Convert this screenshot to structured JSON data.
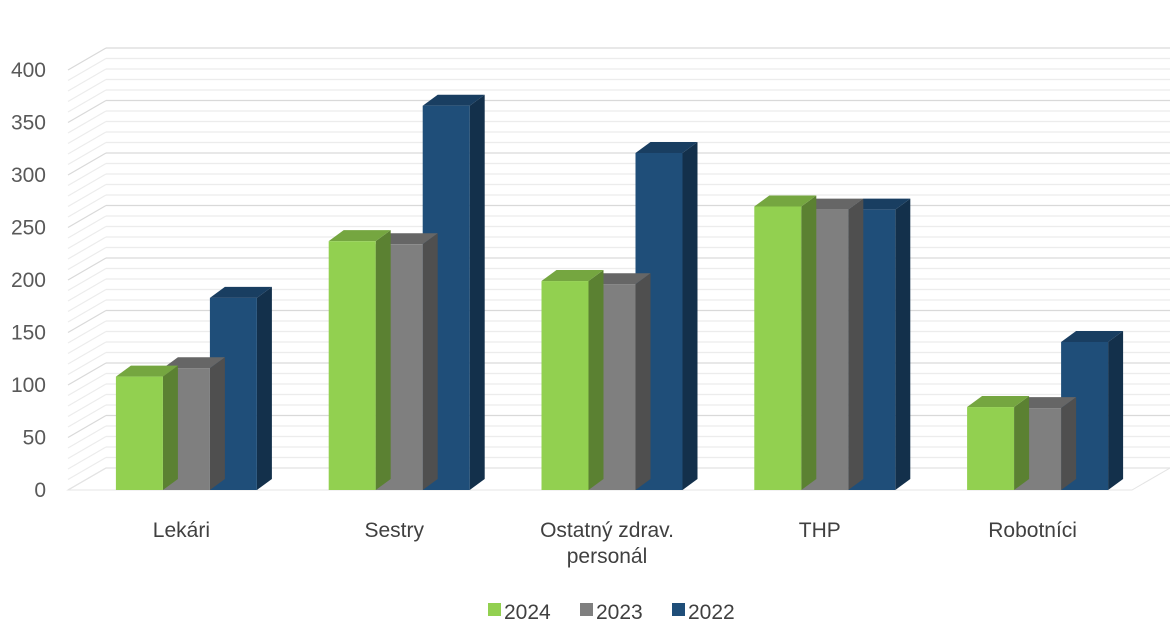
{
  "chart_data": {
    "type": "bar",
    "style": "3d-clustered-column",
    "categories": [
      [
        "Lekári"
      ],
      [
        "Sestry"
      ],
      [
        "Ostatný zdrav.",
        "personál"
      ],
      [
        "THP"
      ],
      [
        "Robotníci"
      ]
    ],
    "series": [
      {
        "name": "2024",
        "color": "#92d050",
        "values": [
          108,
          237,
          199,
          270,
          79
        ]
      },
      {
        "name": "2023",
        "color": "#7f7f7f",
        "values": [
          116,
          234,
          196,
          267,
          78
        ]
      },
      {
        "name": "2022",
        "color": "#1f4e79",
        "values": [
          183,
          366,
          321,
          267,
          141
        ]
      }
    ],
    "ylim": [
      0,
      400
    ],
    "yticks": [
      0,
      50,
      100,
      150,
      200,
      250,
      300,
      350,
      400
    ],
    "grid": true,
    "legend": "bottom"
  }
}
